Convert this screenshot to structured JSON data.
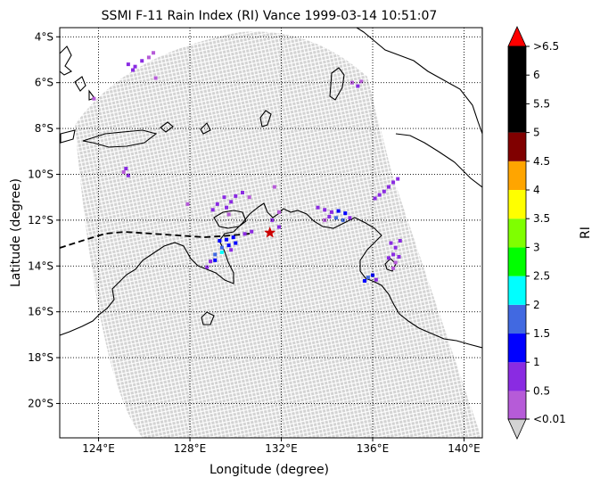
{
  "figure": {
    "title": "SSMI F-11 Rain Index (RI) Vance 1999-03-14 10:51:07",
    "xlabel": "Longitude (degree)",
    "ylabel": "Latitude (degree)",
    "colorbar_label": "RI"
  },
  "map": {
    "lon_range": [
      122.3,
      140.8
    ],
    "lat_range": [
      -21.5,
      -3.6
    ],
    "lon_ticks": [
      {
        "value": 124,
        "label": "124°E"
      },
      {
        "value": 128,
        "label": "128°E"
      },
      {
        "value": 132,
        "label": "132°E"
      },
      {
        "value": 136,
        "label": "136°E"
      },
      {
        "value": 140,
        "label": "140°E"
      }
    ],
    "lat_ticks": [
      {
        "value": -4,
        "label": "4°S"
      },
      {
        "value": -6,
        "label": "6°S"
      },
      {
        "value": -8,
        "label": "8°S"
      },
      {
        "value": -10,
        "label": "10°S"
      },
      {
        "value": -12,
        "label": "12°S"
      },
      {
        "value": -14,
        "label": "14°S"
      },
      {
        "value": -16,
        "label": "16°S"
      },
      {
        "value": -18,
        "label": "18°S"
      },
      {
        "value": -20,
        "label": "20°S"
      }
    ],
    "gridlines": "dotted",
    "swath_color": "#d3d3d3",
    "storm_center": {
      "lon": 131.5,
      "lat": -12.55,
      "color": "#cc0000"
    },
    "rain_pixels": [
      {
        "lon": 125.3,
        "lat": -5.2,
        "ri": 0.5
      },
      {
        "lon": 125.6,
        "lat": -5.3,
        "ri": 0.5
      },
      {
        "lon": 125.9,
        "lat": -5.05,
        "ri": 0.5
      },
      {
        "lon": 126.2,
        "lat": -4.9,
        "ri": 0.3
      },
      {
        "lon": 126.4,
        "lat": -4.7,
        "ri": 0.3
      },
      {
        "lon": 125.5,
        "lat": -5.45,
        "ri": 0.5
      },
      {
        "lon": 126.5,
        "lat": -5.8,
        "ri": 0.3
      },
      {
        "lon": 123.8,
        "lat": -6.7,
        "ri": 0.3
      },
      {
        "lon": 125.1,
        "lat": -9.9,
        "ri": 0.3
      },
      {
        "lon": 125.3,
        "lat": -10.05,
        "ri": 0.5
      },
      {
        "lon": 125.2,
        "lat": -9.75,
        "ri": 0.5
      },
      {
        "lon": 135.1,
        "lat": -6.0,
        "ri": 0.3
      },
      {
        "lon": 135.35,
        "lat": -6.15,
        "ri": 0.5
      },
      {
        "lon": 135.5,
        "lat": -5.95,
        "ri": 0.3
      },
      {
        "lon": 127.9,
        "lat": -11.3,
        "ri": 0.3
      },
      {
        "lon": 129.5,
        "lat": -11.0,
        "ri": 0.5
      },
      {
        "lon": 129.8,
        "lat": -11.2,
        "ri": 0.5
      },
      {
        "lon": 129.2,
        "lat": -11.3,
        "ri": 0.5
      },
      {
        "lon": 129.6,
        "lat": -11.45,
        "ri": 0.5
      },
      {
        "lon": 129.0,
        "lat": -11.55,
        "ri": 0.5
      },
      {
        "lon": 129.7,
        "lat": -11.75,
        "ri": 0.3
      },
      {
        "lon": 130.3,
        "lat": -10.8,
        "ri": 0.5
      },
      {
        "lon": 130.6,
        "lat": -11.0,
        "ri": 0.3
      },
      {
        "lon": 130.0,
        "lat": -10.95,
        "ri": 0.5
      },
      {
        "lon": 131.7,
        "lat": -10.55,
        "ri": 0.3
      },
      {
        "lon": 131.9,
        "lat": -11.65,
        "ri": 0.3
      },
      {
        "lon": 131.6,
        "lat": -12.0,
        "ri": 0.5
      },
      {
        "lon": 131.9,
        "lat": -12.3,
        "ri": 0.5
      },
      {
        "lon": 129.3,
        "lat": -12.9,
        "ri": 1.2
      },
      {
        "lon": 129.6,
        "lat": -12.85,
        "ri": 1.2
      },
      {
        "lon": 129.9,
        "lat": -12.75,
        "ri": 1.2
      },
      {
        "lon": 129.4,
        "lat": -13.2,
        "ri": 1.7
      },
      {
        "lon": 129.7,
        "lat": -13.1,
        "ri": 1.2
      },
      {
        "lon": 130.0,
        "lat": -13.0,
        "ri": 1.2
      },
      {
        "lon": 129.1,
        "lat": -13.5,
        "ri": 1.7
      },
      {
        "lon": 129.4,
        "lat": -13.4,
        "ri": 2.2
      },
      {
        "lon": 129.8,
        "lat": -13.3,
        "ri": 0.7
      },
      {
        "lon": 128.9,
        "lat": -13.8,
        "ri": 0.5
      },
      {
        "lon": 128.75,
        "lat": -14.05,
        "ri": 0.5
      },
      {
        "lon": 129.1,
        "lat": -13.75,
        "ri": 1.2
      },
      {
        "lon": 130.4,
        "lat": -12.6,
        "ri": 0.5
      },
      {
        "lon": 130.7,
        "lat": -12.5,
        "ri": 0.5
      },
      {
        "lon": 133.6,
        "lat": -11.45,
        "ri": 0.5
      },
      {
        "lon": 133.9,
        "lat": -11.55,
        "ri": 0.5
      },
      {
        "lon": 134.2,
        "lat": -11.65,
        "ri": 0.5
      },
      {
        "lon": 134.5,
        "lat": -11.6,
        "ri": 1.2
      },
      {
        "lon": 134.8,
        "lat": -11.7,
        "ri": 1.2
      },
      {
        "lon": 134.4,
        "lat": -11.9,
        "ri": 1.7
      },
      {
        "lon": 134.7,
        "lat": -12.0,
        "ri": 1.7
      },
      {
        "lon": 135.0,
        "lat": -11.9,
        "ri": 0.5
      },
      {
        "lon": 134.1,
        "lat": -11.85,
        "ri": 0.5
      },
      {
        "lon": 133.9,
        "lat": -12.0,
        "ri": 0.3
      },
      {
        "lon": 136.3,
        "lat": -10.9,
        "ri": 0.5
      },
      {
        "lon": 136.5,
        "lat": -10.75,
        "ri": 0.5
      },
      {
        "lon": 136.7,
        "lat": -10.55,
        "ri": 0.5
      },
      {
        "lon": 136.9,
        "lat": -10.35,
        "ri": 0.5
      },
      {
        "lon": 137.1,
        "lat": -10.2,
        "ri": 0.5
      },
      {
        "lon": 136.1,
        "lat": -11.05,
        "ri": 0.5
      },
      {
        "lon": 136.8,
        "lat": -13.0,
        "ri": 0.5
      },
      {
        "lon": 137.0,
        "lat": -13.2,
        "ri": 0.5
      },
      {
        "lon": 137.2,
        "lat": -12.9,
        "ri": 0.5
      },
      {
        "lon": 136.9,
        "lat": -13.5,
        "ri": 0.5
      },
      {
        "lon": 137.15,
        "lat": -13.6,
        "ri": 0.5
      },
      {
        "lon": 136.7,
        "lat": -13.65,
        "ri": 0.5
      },
      {
        "lon": 137.0,
        "lat": -13.85,
        "ri": 0.3
      },
      {
        "lon": 136.9,
        "lat": -14.1,
        "ri": 0.3
      },
      {
        "lon": 135.8,
        "lat": -14.5,
        "ri": 1.7
      },
      {
        "lon": 136.0,
        "lat": -14.4,
        "ri": 1.2
      },
      {
        "lon": 135.65,
        "lat": -14.65,
        "ri": 1.2
      },
      {
        "lon": 136.15,
        "lat": -14.6,
        "ri": 0.5
      }
    ]
  },
  "colorbar": {
    "levels": [
      0.01,
      0.5,
      1,
      1.5,
      2,
      2.5,
      3,
      3.5,
      4,
      4.5,
      5,
      6.5
    ],
    "colors": [
      "#b65bd8",
      "#8a2be2",
      "#0000ff",
      "#4169e1",
      "#00ffff",
      "#00ff00",
      "#7fff00",
      "#ffff00",
      "#ffa500",
      "#800000",
      "#000000"
    ],
    "under_color": "#d3d3d3",
    "over_color": "#ff0000",
    "tick_labels": [
      {
        "value": 0.01,
        "label": "<0.01"
      },
      {
        "value": 0.5,
        "label": "0.5"
      },
      {
        "value": 1,
        "label": "1"
      },
      {
        "value": 1.5,
        "label": "1.5"
      },
      {
        "value": 2,
        "label": "2"
      },
      {
        "value": 2.5,
        "label": "2.5"
      },
      {
        "value": 3,
        "label": "3"
      },
      {
        "value": 3.5,
        "label": "3.5"
      },
      {
        "value": 4,
        "label": "4"
      },
      {
        "value": 4.5,
        "label": "4.5"
      },
      {
        "value": 5,
        "label": "5"
      },
      {
        "value": 5.5,
        "label": "5.5"
      },
      {
        "value": 6,
        "label": "6"
      },
      {
        "value": 6.5,
        "label": ">6.5"
      }
    ]
  }
}
